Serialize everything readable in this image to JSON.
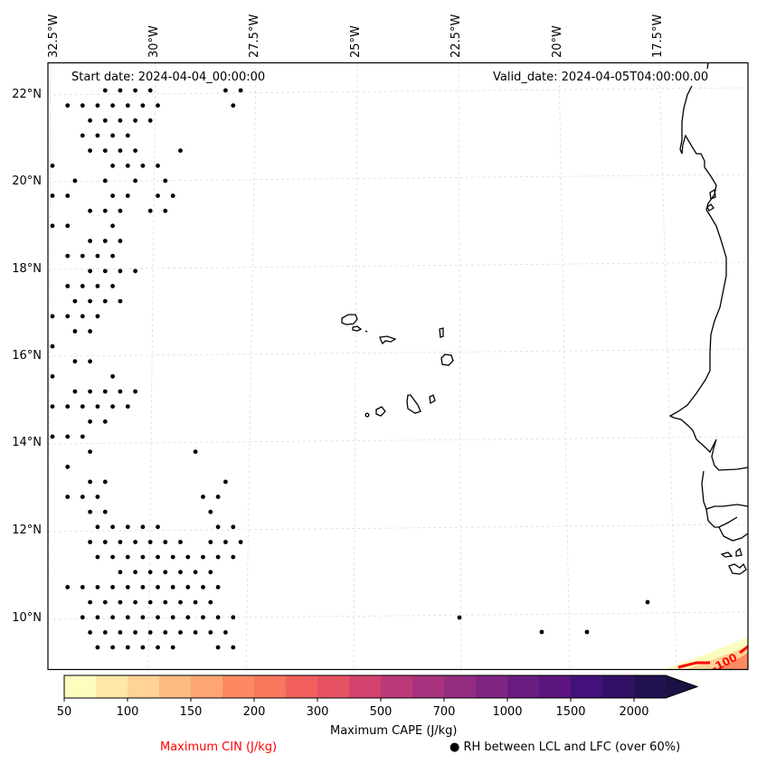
{
  "map": {
    "lon_labels": [
      "32.5°W",
      "30°W",
      "27.5°W",
      "25°W",
      "22.5°W",
      "20°W",
      "17.5°W"
    ],
    "lat_labels": [
      "22°N",
      "20°N",
      "18°N",
      "16°N",
      "14°N",
      "12°N",
      "10°N"
    ],
    "start_date": "Start date: 2024-04-04_00:00:00",
    "valid_date": "Valid_date: 2024-04-05T04:00:00.00",
    "cin_contour_label": "-100",
    "colors": {
      "coastline": "#000000",
      "gridline": "#dddddd",
      "cin_contour": "#ff0000",
      "rh_dot": "#000000"
    },
    "rh_dots": [
      [
        0,
        [
          3,
          4,
          5,
          6,
          11,
          12
        ]
      ],
      [
        1,
        [
          1,
          2,
          3,
          4,
          5,
          6,
          7,
          12
        ]
      ],
      [
        2,
        [
          2,
          3,
          4,
          5,
          6
        ]
      ],
      [
        3,
        [
          2,
          3,
          4,
          5
        ]
      ],
      [
        4,
        [
          2,
          3,
          4,
          5,
          8
        ]
      ],
      [
        5,
        [
          0,
          4,
          5,
          6,
          7
        ]
      ],
      [
        6,
        [
          1,
          3,
          5,
          7
        ]
      ],
      [
        7,
        [
          0,
          1,
          4,
          5,
          7,
          8
        ]
      ],
      [
        8,
        [
          2,
          3,
          4,
          6,
          7
        ]
      ],
      [
        9,
        [
          0,
          1,
          4
        ]
      ],
      [
        10,
        [
          2,
          3,
          4
        ]
      ],
      [
        11,
        [
          1,
          2,
          3,
          4
        ]
      ],
      [
        12,
        [
          2,
          3,
          4,
          5
        ]
      ],
      [
        13,
        [
          1,
          2,
          3,
          4
        ]
      ],
      [
        14,
        [
          1,
          2,
          3,
          4
        ]
      ],
      [
        15,
        [
          0,
          1,
          2,
          3
        ]
      ],
      [
        16,
        [
          1,
          2
        ]
      ],
      [
        17,
        [
          0
        ]
      ],
      [
        18,
        [
          1,
          2
        ]
      ],
      [
        19,
        [
          0,
          4
        ]
      ],
      [
        20,
        [
          1,
          2,
          3,
          4,
          5
        ]
      ],
      [
        21,
        [
          0,
          1,
          2,
          3,
          4,
          5
        ]
      ],
      [
        22,
        [
          2,
          3
        ]
      ],
      [
        23,
        [
          0,
          1,
          2
        ]
      ],
      [
        24,
        [
          2,
          9
        ]
      ],
      [
        25,
        [
          1
        ]
      ],
      [
        26,
        [
          2,
          3,
          11
        ]
      ],
      [
        27,
        [
          1,
          2,
          3,
          10,
          11
        ]
      ],
      [
        28,
        [
          2,
          3,
          10
        ]
      ],
      [
        29,
        [
          3,
          4,
          5,
          6,
          7,
          11,
          12,
          14
        ]
      ],
      [
        30,
        [
          2,
          3,
          4,
          5,
          6,
          7,
          8,
          10,
          11,
          12,
          13
        ]
      ],
      [
        31,
        [
          3,
          4,
          5,
          6,
          7,
          8,
          9,
          10,
          11,
          12
        ]
      ],
      [
        32,
        [
          4,
          5,
          6,
          7,
          8,
          9,
          10
        ]
      ],
      [
        33,
        [
          1,
          2,
          3,
          4,
          5,
          6,
          7,
          8,
          9,
          10,
          11
        ]
      ],
      [
        34,
        [
          2,
          3,
          4,
          5,
          6,
          7,
          8,
          9,
          10
        ]
      ],
      [
        35,
        [
          2,
          3,
          4,
          5,
          6,
          7,
          8,
          9,
          10,
          11,
          12
        ]
      ],
      [
        36,
        [
          2,
          3,
          4,
          5,
          6,
          7,
          8,
          9,
          10,
          11
        ]
      ],
      [
        37,
        [
          3,
          4,
          5,
          6,
          7,
          8,
          11,
          12
        ]
      ]
    ],
    "rh_dots_extra": [
      [
        508,
        683
      ],
      [
        599,
        699
      ],
      [
        649,
        699
      ],
      [
        716,
        666
      ]
    ]
  },
  "colorbar": {
    "ticks": [
      "50",
      "100",
      "150",
      "200",
      "300",
      "500",
      "700",
      "1000",
      "1500",
      "2000"
    ],
    "colors": [
      "#fcfdbf",
      "#fde7a9",
      "#fed395",
      "#febb81",
      "#fea772",
      "#fc8961",
      "#f7785c",
      "#f1605d",
      "#e75263",
      "#d3436e",
      "#bc3978",
      "#a8327d",
      "#942c80",
      "#802582",
      "#6a1c81",
      "#5a167e",
      "#43117a",
      "#311165",
      "#221150"
    ],
    "extend_color": "#1b1145",
    "title": "Maximum CAPE (J/kg)",
    "cin_legend": "Maximum CIN (J/kg)",
    "rh_legend": "RH between LCL and LFC (over 60%)",
    "rh_legend_marker": "●"
  }
}
